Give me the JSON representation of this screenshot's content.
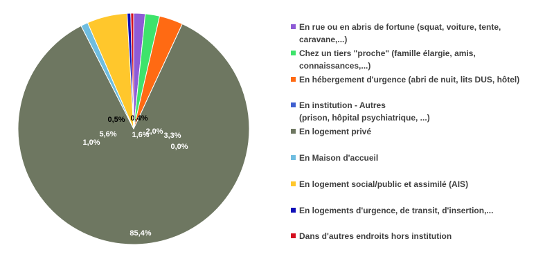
{
  "chart_data": {
    "type": "pie",
    "slices": [
      {
        "label": "En rue ou en abris de fortune  (squat, voiture, tente,\ncaravane,...)",
        "value": 1.6,
        "value_label": "1,6%",
        "color": "#8e5bd6",
        "label_color": "#ffffff"
      },
      {
        "label": "Chez un tiers \"proche\" (famille élargie, amis,\nconnaissances,...)",
        "value": 2.0,
        "value_label": "2,0%",
        "color": "#3ee36b",
        "label_color": "#ffffff"
      },
      {
        "label": "En hébergement d'urgence (abri de nuit, lits DUS, hôtel)",
        "value": 3.3,
        "value_label": "3,3%",
        "color": "#ff6a13",
        "label_color": "#ffffff"
      },
      {
        "label": "En institution - Autres\n(prison, hôpital psychiatrique, ...)",
        "value": 0.0,
        "value_label": "0,0%",
        "color": "#3f5fcf",
        "label_color": "#ffffff"
      },
      {
        "label": "En logement privé",
        "value": 85.4,
        "value_label": "85,4%",
        "color": "#6e7761",
        "label_color": "#ffffff"
      },
      {
        "label": "En Maison d'accueil",
        "value": 1.0,
        "value_label": "1,0%",
        "color": "#6fbde0",
        "label_color": "#ffffff"
      },
      {
        "label": "En logement social/public et assimilé (AIS)",
        "value": 5.6,
        "value_label": "5,6%",
        "color": "#ffc72c",
        "label_color": "#ffffff"
      },
      {
        "label": "En logements d'urgence, de transit, d'insertion,...",
        "value": 0.5,
        "value_label": "0,5%",
        "color": "#1010b8",
        "label_color": "#000000"
      },
      {
        "label": "Dans d'autres endroits hors institution",
        "value": 0.4,
        "value_label": "0,4%",
        "color": "#d40f1f",
        "label_color": "#000000"
      }
    ],
    "legend_position": "right",
    "start_angle_deg": 0,
    "direction": "clockwise"
  }
}
